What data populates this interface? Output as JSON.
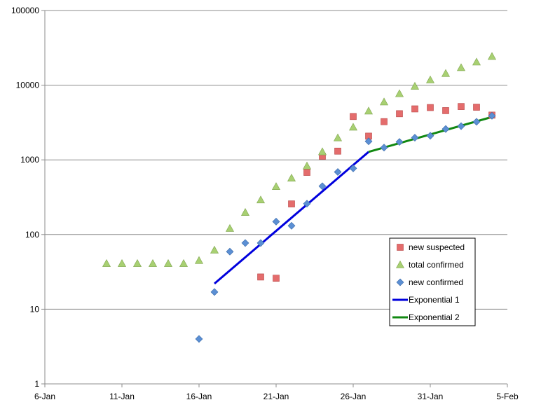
{
  "chart_data": {
    "type": "scatter",
    "title": "",
    "xlabel": "",
    "ylabel": "",
    "y_scale": "log",
    "ylim": [
      1,
      100000
    ],
    "xlim": [
      "2020-01-06",
      "2020-02-05"
    ],
    "y_ticks": [
      {
        "value": 1,
        "label": "1"
      },
      {
        "value": 10,
        "label": "10"
      },
      {
        "value": 100,
        "label": "100"
      },
      {
        "value": 1000,
        "label": "1000"
      },
      {
        "value": 10000,
        "label": "10000"
      },
      {
        "value": 100000,
        "label": "100000"
      }
    ],
    "x_ticks": [
      {
        "value": "2020-01-06",
        "label": "6-Jan"
      },
      {
        "value": "2020-01-11",
        "label": "11-Jan"
      },
      {
        "value": "2020-01-16",
        "label": "16-Jan"
      },
      {
        "value": "2020-01-21",
        "label": "21-Jan"
      },
      {
        "value": "2020-01-26",
        "label": "26-Jan"
      },
      {
        "value": "2020-01-31",
        "label": "31-Jan"
      },
      {
        "value": "2020-02-05",
        "label": "5-Feb"
      }
    ],
    "grid": {
      "horizontal": true,
      "vertical": false
    },
    "legend_position": "right-middle",
    "series": [
      {
        "name": "new suspected",
        "marker": "square",
        "color": "#e06666",
        "points": [
          {
            "x": "2020-01-20",
            "y": 27
          },
          {
            "x": "2020-01-21",
            "y": 26
          },
          {
            "x": "2020-01-22",
            "y": 257
          },
          {
            "x": "2020-01-23",
            "y": 680
          },
          {
            "x": "2020-01-24",
            "y": 1118
          },
          {
            "x": "2020-01-25",
            "y": 1309
          },
          {
            "x": "2020-01-26",
            "y": 3806
          },
          {
            "x": "2020-01-27",
            "y": 2077
          },
          {
            "x": "2020-01-28",
            "y": 3248
          },
          {
            "x": "2020-01-29",
            "y": 4148
          },
          {
            "x": "2020-01-30",
            "y": 4812
          },
          {
            "x": "2020-01-31",
            "y": 5019
          },
          {
            "x": "2020-02-01",
            "y": 4562
          },
          {
            "x": "2020-02-02",
            "y": 5173
          },
          {
            "x": "2020-02-03",
            "y": 5072
          },
          {
            "x": "2020-02-04",
            "y": 3971
          }
        ]
      },
      {
        "name": "total confirmed",
        "marker": "triangle",
        "color": "#9bbb59",
        "points": [
          {
            "x": "2020-01-10",
            "y": 41
          },
          {
            "x": "2020-01-11",
            "y": 41
          },
          {
            "x": "2020-01-12",
            "y": 41
          },
          {
            "x": "2020-01-13",
            "y": 41
          },
          {
            "x": "2020-01-14",
            "y": 41
          },
          {
            "x": "2020-01-15",
            "y": 41
          },
          {
            "x": "2020-01-16",
            "y": 45
          },
          {
            "x": "2020-01-17",
            "y": 62
          },
          {
            "x": "2020-01-18",
            "y": 121
          },
          {
            "x": "2020-01-19",
            "y": 198
          },
          {
            "x": "2020-01-20",
            "y": 291
          },
          {
            "x": "2020-01-21",
            "y": 440
          },
          {
            "x": "2020-01-22",
            "y": 571
          },
          {
            "x": "2020-01-23",
            "y": 830
          },
          {
            "x": "2020-01-24",
            "y": 1287
          },
          {
            "x": "2020-01-25",
            "y": 1975
          },
          {
            "x": "2020-01-26",
            "y": 2744
          },
          {
            "x": "2020-01-27",
            "y": 4515
          },
          {
            "x": "2020-01-28",
            "y": 5974
          },
          {
            "x": "2020-01-29",
            "y": 7711
          },
          {
            "x": "2020-01-30",
            "y": 9692
          },
          {
            "x": "2020-01-31",
            "y": 11791
          },
          {
            "x": "2020-02-01",
            "y": 14380
          },
          {
            "x": "2020-02-02",
            "y": 17205
          },
          {
            "x": "2020-02-03",
            "y": 20438
          },
          {
            "x": "2020-02-04",
            "y": 24324
          }
        ]
      },
      {
        "name": "new confirmed",
        "marker": "diamond",
        "color": "#4f81bd",
        "points": [
          {
            "x": "2020-01-16",
            "y": 4
          },
          {
            "x": "2020-01-17",
            "y": 17
          },
          {
            "x": "2020-01-18",
            "y": 59
          },
          {
            "x": "2020-01-19",
            "y": 77
          },
          {
            "x": "2020-01-20",
            "y": 77
          },
          {
            "x": "2020-01-21",
            "y": 149
          },
          {
            "x": "2020-01-22",
            "y": 131
          },
          {
            "x": "2020-01-23",
            "y": 259
          },
          {
            "x": "2020-01-24",
            "y": 444
          },
          {
            "x": "2020-01-25",
            "y": 688
          },
          {
            "x": "2020-01-26",
            "y": 769
          },
          {
            "x": "2020-01-27",
            "y": 1771
          },
          {
            "x": "2020-01-28",
            "y": 1459
          },
          {
            "x": "2020-01-29",
            "y": 1737
          },
          {
            "x": "2020-01-30",
            "y": 1982
          },
          {
            "x": "2020-01-31",
            "y": 2102
          },
          {
            "x": "2020-02-01",
            "y": 2590
          },
          {
            "x": "2020-02-02",
            "y": 2829
          },
          {
            "x": "2020-02-03",
            "y": 3235
          },
          {
            "x": "2020-02-04",
            "y": 3887
          }
        ]
      }
    ],
    "fit_lines": [
      {
        "name": "Exponential 1",
        "color": "#0000dd",
        "points": [
          {
            "x": "2020-01-17",
            "y": 22
          },
          {
            "x": "2020-01-27",
            "y": 1280
          }
        ]
      },
      {
        "name": "Exponential 2",
        "color": "#118811",
        "points": [
          {
            "x": "2020-01-27",
            "y": 1280
          },
          {
            "x": "2020-02-04",
            "y": 3750
          }
        ]
      }
    ]
  }
}
